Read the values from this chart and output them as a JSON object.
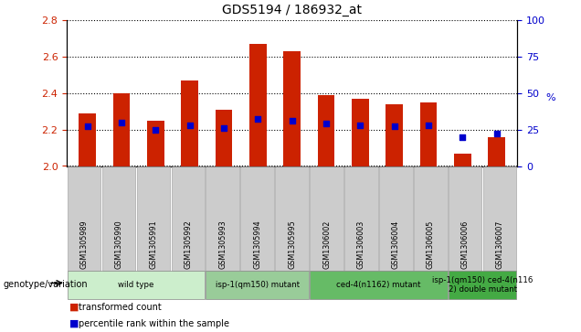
{
  "title": "GDS5194 / 186932_at",
  "samples": [
    "GSM1305989",
    "GSM1305990",
    "GSM1305991",
    "GSM1305992",
    "GSM1305993",
    "GSM1305994",
    "GSM1305995",
    "GSM1306002",
    "GSM1306003",
    "GSM1306004",
    "GSM1306005",
    "GSM1306006",
    "GSM1306007"
  ],
  "transformed_count": [
    2.29,
    2.4,
    2.25,
    2.47,
    2.31,
    2.67,
    2.63,
    2.39,
    2.37,
    2.34,
    2.35,
    2.07,
    2.16
  ],
  "percentile_rank": [
    27,
    30,
    25,
    28,
    26,
    32,
    31,
    29,
    28,
    27,
    28,
    20,
    22
  ],
  "bar_color": "#CC2200",
  "dot_color": "#0000CC",
  "ylim": [
    2.0,
    2.8
  ],
  "y2lim": [
    0,
    100
  ],
  "yticks": [
    2.0,
    2.2,
    2.4,
    2.6,
    2.8
  ],
  "y2ticks": [
    0,
    25,
    50,
    75,
    100
  ],
  "groups": [
    {
      "label": "wild type",
      "start": 0,
      "end": 4,
      "color": "#CCEECC"
    },
    {
      "label": "isp-1(qm150) mutant",
      "start": 4,
      "end": 7,
      "color": "#99CC99"
    },
    {
      "label": "ced-4(n1162) mutant",
      "start": 7,
      "end": 11,
      "color": "#66BB66"
    },
    {
      "label": "isp-1(qm150) ced-4(n116\n2) double mutant",
      "start": 11,
      "end": 13,
      "color": "#44AA44"
    }
  ],
  "genotype_label": "genotype/variation",
  "legend_items": [
    {
      "label": "transformed count",
      "color": "#CC2200"
    },
    {
      "label": "percentile rank within the sample",
      "color": "#0000CC"
    }
  ],
  "tick_color_left": "#CC2200",
  "tick_color_right": "#0000CC",
  "bar_width": 0.5,
  "xtick_bg": "#CCCCCC"
}
